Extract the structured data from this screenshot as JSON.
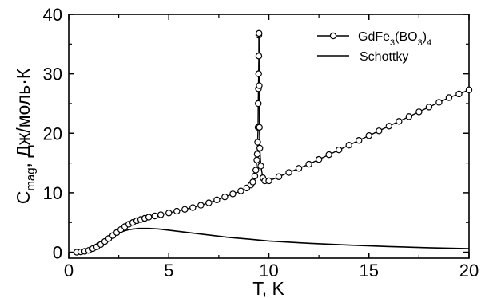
{
  "chart_data": {
    "type": "scatter",
    "xlabel": "T, K",
    "ylabel": {
      "main": "C",
      "subscript": "mag",
      "rest": ", Дж/моль·К"
    },
    "xlim": [
      0,
      20
    ],
    "ylim": [
      -1,
      40
    ],
    "xticks": [
      0,
      5,
      10,
      15,
      20
    ],
    "yticks": [
      0,
      10,
      20,
      30,
      40
    ],
    "grid": false,
    "legend_position": "top-right",
    "series": [
      {
        "name": "GdFe3(BO3)4",
        "legend_parts": [
          {
            "text": "GdFe",
            "sub": false
          },
          {
            "text": "3",
            "sub": true
          },
          {
            "text": "(BO",
            "sub": false
          },
          {
            "text": "3",
            "sub": true
          },
          {
            "text": ")",
            "sub": false
          },
          {
            "text": "4",
            "sub": true
          }
        ],
        "style": "line-with-open-circles",
        "color": "#000000",
        "x": [
          0.4,
          0.6,
          0.8,
          1.0,
          1.2,
          1.4,
          1.6,
          1.8,
          2.0,
          2.2,
          2.4,
          2.6,
          2.8,
          3.0,
          3.2,
          3.4,
          3.6,
          3.8,
          4.0,
          4.3,
          4.6,
          5.0,
          5.4,
          5.8,
          6.2,
          6.6,
          7.0,
          7.4,
          7.8,
          8.2,
          8.6,
          8.9,
          9.1,
          9.2,
          9.3,
          9.35,
          9.4,
          9.42,
          9.44,
          9.46,
          9.47,
          9.48,
          9.49,
          9.5,
          9.5,
          9.51,
          9.52,
          9.53,
          9.55,
          9.6,
          9.7,
          9.8,
          10.0,
          10.5,
          11.0,
          11.5,
          12.0,
          12.5,
          13.0,
          13.5,
          14.0,
          14.5,
          15.0,
          15.5,
          16.0,
          16.5,
          17.0,
          17.5,
          18.0,
          18.5,
          19.0,
          19.5,
          20.0
        ],
        "y": [
          0.0,
          0.05,
          0.15,
          0.3,
          0.6,
          0.9,
          1.3,
          1.8,
          2.3,
          2.8,
          3.3,
          3.8,
          4.3,
          4.7,
          5.0,
          5.3,
          5.5,
          5.7,
          5.9,
          6.1,
          6.3,
          6.6,
          6.9,
          7.2,
          7.5,
          7.9,
          8.3,
          8.8,
          9.3,
          9.8,
          10.3,
          10.8,
          11.3,
          11.8,
          12.8,
          13.8,
          15.5,
          16.5,
          18.5,
          21.0,
          25.0,
          27.5,
          30.0,
          33.0,
          36.5,
          36.8,
          28.0,
          21.0,
          17.5,
          14.5,
          12.5,
          12.0,
          12.0,
          12.7,
          13.4,
          14.1,
          14.8,
          15.6,
          16.4,
          17.2,
          18.0,
          18.8,
          19.6,
          20.4,
          21.2,
          22.0,
          22.8,
          23.6,
          24.4,
          25.2,
          26.0,
          26.6,
          27.3
        ]
      },
      {
        "name": "Schottky",
        "legend_parts": [
          {
            "text": "Schottky",
            "sub": false
          }
        ],
        "style": "line",
        "color": "#000000",
        "x": [
          0.3,
          0.6,
          1.0,
          1.5,
          2.0,
          2.5,
          3.0,
          3.5,
          4.0,
          4.5,
          5.0,
          6.0,
          7.0,
          8.0,
          9.0,
          10.0,
          12.0,
          14.0,
          16.0,
          18.0,
          20.0
        ],
        "y": [
          0.0,
          0.1,
          0.6,
          1.6,
          2.6,
          3.3,
          3.8,
          4.0,
          4.0,
          3.9,
          3.7,
          3.3,
          2.9,
          2.5,
          2.2,
          1.9,
          1.5,
          1.2,
          0.95,
          0.75,
          0.6
        ]
      }
    ]
  }
}
